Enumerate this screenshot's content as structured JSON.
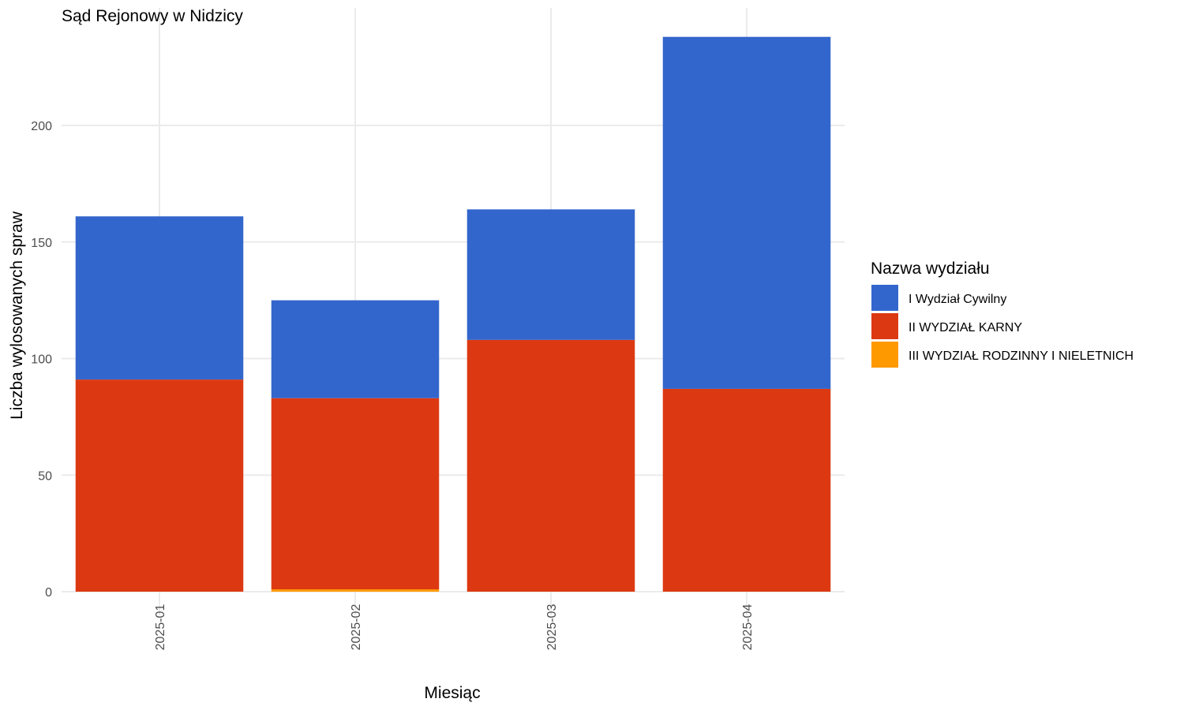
{
  "chart_data": {
    "type": "bar",
    "stacked": true,
    "title": "Sąd Rejonowy w Nidzicy",
    "xlabel": "Miesiąc",
    "ylabel": "Liczba wylosowanych spraw",
    "categories": [
      "2025-01",
      "2025-02",
      "2025-03",
      "2025-04"
    ],
    "ylim": [
      0,
      250
    ],
    "yticks": [
      0,
      50,
      100,
      150,
      200
    ],
    "grid": true,
    "legend": {
      "title": "Nazwa wydziału",
      "position": "right"
    },
    "series": [
      {
        "name": "III WYDZIAŁ RODZINNY I NIELETNICH",
        "color": "#ff9900",
        "values": [
          0,
          1,
          0,
          0
        ]
      },
      {
        "name": "II WYDZIAŁ KARNY",
        "color": "#dc3912",
        "values": [
          91,
          82,
          108,
          87
        ]
      },
      {
        "name": "I Wydział Cywilny",
        "color": "#3366cc",
        "values": [
          70,
          42,
          56,
          151
        ]
      }
    ],
    "legend_order": [
      "I Wydział Cywilny",
      "II WYDZIAŁ KARNY",
      "III WYDZIAŁ RODZINNY I NIELETNICH"
    ]
  }
}
